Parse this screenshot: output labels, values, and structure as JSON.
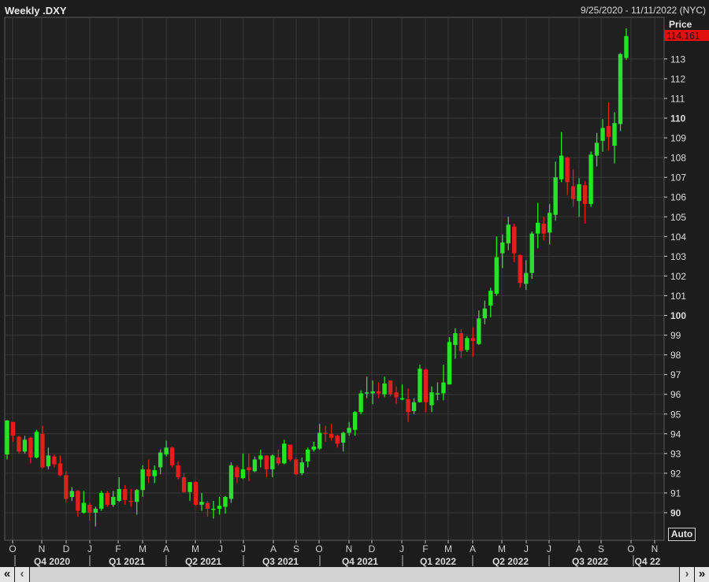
{
  "header": {
    "title": "Weekly .DXY",
    "range": "9/25/2020 - 11/11/2022 (NYC)"
  },
  "price_axis": {
    "label": "Price",
    "last_price": "114.161",
    "last_price_color": "#e01010",
    "auto_label": "Auto"
  },
  "scrollbar": {
    "first": "«",
    "prev": "‹",
    "next": "›",
    "last": "»"
  },
  "colors": {
    "up": "#24e524",
    "down": "#e0201c",
    "background": "#1c1c1c",
    "grid": "#383838"
  },
  "chart_data": {
    "type": "candlestick",
    "title": "Weekly .DXY",
    "period": "weekly",
    "ylabel": "Price",
    "ylim": [
      88.6,
      115
    ],
    "grid": true,
    "y_ticks": [
      90,
      91,
      92,
      93,
      94,
      95,
      96,
      97,
      98,
      99,
      100,
      101,
      102,
      103,
      104,
      105,
      106,
      107,
      108,
      109,
      110,
      111,
      112,
      113
    ],
    "bold_ticks": [
      90,
      100,
      110
    ],
    "month_labels": [
      "O",
      "N",
      "D",
      "J",
      "F",
      "M",
      "A",
      "M",
      "J",
      "J",
      "A",
      "S",
      "O",
      "N",
      "D",
      "J",
      "F",
      "M",
      "A",
      "M",
      "J",
      "J",
      "A",
      "S",
      "O",
      "N"
    ],
    "quarter_labels": [
      "Q4 2020",
      "Q1 2021",
      "Q2 2021",
      "Q3 2021",
      "Q4 2021",
      "Q1 2022",
      "Q2 2022",
      "Q3 2022",
      "Q4 22"
    ],
    "ohlc_fields": [
      "open",
      "high",
      "low",
      "close"
    ],
    "candles": [
      [
        92.95,
        94.7,
        92.7,
        94.67
      ],
      [
        94.6,
        94.6,
        93.6,
        93.9
      ],
      [
        93.85,
        93.9,
        93.0,
        93.1
      ],
      [
        93.1,
        93.9,
        93.0,
        93.7
      ],
      [
        93.8,
        93.85,
        92.5,
        92.8
      ],
      [
        92.8,
        94.2,
        92.75,
        94.1
      ],
      [
        94.0,
        94.4,
        92.25,
        92.3
      ],
      [
        92.35,
        93.3,
        92.2,
        92.9
      ],
      [
        92.85,
        92.95,
        92.3,
        92.45
      ],
      [
        92.5,
        92.9,
        91.85,
        91.9
      ],
      [
        91.9,
        92.1,
        90.5,
        90.7
      ],
      [
        90.8,
        91.3,
        90.6,
        91.1
      ],
      [
        91.1,
        91.15,
        89.8,
        90.1
      ],
      [
        90.0,
        91.1,
        89.95,
        90.5
      ],
      [
        90.4,
        90.5,
        89.6,
        90.0
      ],
      [
        90.0,
        90.3,
        89.3,
        90.2
      ],
      [
        90.2,
        91.1,
        90.1,
        91.0
      ],
      [
        91.0,
        91.1,
        90.3,
        90.4
      ],
      [
        90.4,
        91.1,
        90.3,
        90.8
      ],
      [
        90.6,
        91.8,
        90.55,
        91.2
      ],
      [
        91.2,
        91.4,
        90.4,
        90.65
      ],
      [
        90.6,
        91.2,
        90.3,
        90.55
      ],
      [
        90.55,
        91.2,
        89.9,
        91.15
      ],
      [
        91.15,
        92.4,
        90.8,
        92.2
      ],
      [
        92.2,
        92.7,
        91.5,
        91.85
      ],
      [
        91.85,
        92.4,
        91.5,
        92.15
      ],
      [
        92.3,
        93.2,
        91.95,
        93.05
      ],
      [
        92.95,
        93.65,
        92.85,
        93.3
      ],
      [
        93.3,
        93.35,
        92.3,
        92.4
      ],
      [
        92.4,
        92.6,
        91.7,
        91.8
      ],
      [
        91.8,
        92.0,
        91.0,
        91.05
      ],
      [
        91.05,
        91.55,
        90.6,
        91.55
      ],
      [
        91.55,
        91.6,
        90.35,
        90.4
      ],
      [
        90.4,
        91.0,
        90.1,
        90.55
      ],
      [
        90.5,
        90.6,
        89.8,
        90.2
      ],
      [
        90.15,
        90.6,
        89.7,
        90.2
      ],
      [
        90.2,
        90.8,
        89.9,
        90.35
      ],
      [
        90.3,
        90.85,
        89.95,
        90.8
      ],
      [
        90.7,
        92.55,
        90.5,
        92.4
      ],
      [
        92.3,
        92.4,
        91.5,
        91.8
      ],
      [
        91.75,
        93.0,
        91.7,
        92.2
      ],
      [
        92.3,
        93.0,
        91.6,
        92.15
      ],
      [
        92.1,
        92.85,
        92.05,
        92.7
      ],
      [
        92.7,
        93.2,
        92.3,
        92.9
      ],
      [
        92.9,
        92.9,
        91.8,
        92.2
      ],
      [
        92.2,
        92.95,
        91.8,
        92.9
      ],
      [
        92.8,
        93.2,
        92.4,
        92.5
      ],
      [
        92.5,
        93.7,
        92.45,
        93.5
      ],
      [
        93.45,
        93.45,
        92.6,
        92.7
      ],
      [
        92.7,
        92.8,
        91.9,
        91.95
      ],
      [
        92.0,
        92.8,
        91.9,
        92.55
      ],
      [
        92.6,
        93.3,
        92.3,
        93.2
      ],
      [
        93.2,
        93.6,
        93.1,
        93.35
      ],
      [
        93.25,
        94.5,
        93.2,
        94.05
      ],
      [
        94.05,
        94.4,
        93.6,
        94.0
      ],
      [
        94.0,
        94.5,
        93.65,
        93.8
      ],
      [
        93.9,
        93.95,
        93.3,
        93.5
      ],
      [
        93.55,
        94.1,
        93.1,
        94.05
      ],
      [
        94.05,
        94.6,
        93.9,
        94.3
      ],
      [
        94.2,
        95.15,
        93.9,
        95.1
      ],
      [
        95.1,
        96.2,
        95.0,
        96.05
      ],
      [
        96.05,
        96.9,
        95.8,
        96.1
      ],
      [
        96.05,
        96.7,
        95.5,
        96.15
      ],
      [
        96.15,
        96.6,
        95.8,
        96.05
      ],
      [
        96.0,
        96.9,
        95.85,
        96.55
      ],
      [
        96.7,
        96.7,
        95.9,
        96.0
      ],
      [
        96.1,
        96.4,
        95.5,
        95.85
      ],
      [
        95.75,
        96.5,
        95.7,
        95.8
      ],
      [
        95.75,
        96.3,
        94.6,
        95.1
      ],
      [
        95.15,
        95.8,
        95.0,
        95.6
      ],
      [
        95.6,
        97.5,
        95.6,
        97.3
      ],
      [
        97.25,
        97.3,
        95.1,
        95.6
      ],
      [
        95.45,
        96.4,
        95.1,
        96.1
      ],
      [
        96.0,
        96.6,
        95.7,
        96.05
      ],
      [
        96.05,
        97.5,
        95.7,
        96.6
      ],
      [
        96.5,
        98.9,
        96.5,
        98.65
      ],
      [
        98.5,
        99.35,
        97.8,
        99.1
      ],
      [
        99.1,
        99.3,
        97.85,
        98.2
      ],
      [
        98.25,
        98.95,
        98.15,
        98.85
      ],
      [
        98.85,
        99.4,
        97.9,
        98.7
      ],
      [
        98.55,
        100.25,
        98.5,
        99.85
      ],
      [
        99.85,
        100.75,
        99.55,
        100.35
      ],
      [
        100.5,
        101.4,
        99.9,
        101.25
      ],
      [
        101.1,
        104.0,
        101.0,
        102.95
      ],
      [
        103.15,
        104.1,
        102.4,
        103.7
      ],
      [
        103.65,
        105.0,
        103.3,
        104.6
      ],
      [
        104.5,
        104.65,
        102.7,
        103.15
      ],
      [
        103.05,
        103.1,
        101.4,
        101.65
      ],
      [
        101.6,
        102.8,
        101.3,
        102.15
      ],
      [
        102.15,
        104.25,
        101.85,
        104.15
      ],
      [
        104.15,
        105.7,
        103.4,
        104.7
      ],
      [
        104.65,
        105.0,
        103.8,
        104.15
      ],
      [
        104.2,
        105.65,
        103.6,
        105.2
      ],
      [
        105.1,
        107.8,
        104.8,
        107.0
      ],
      [
        106.9,
        109.3,
        106.75,
        108.1
      ],
      [
        108.0,
        108.05,
        106.1,
        106.75
      ],
      [
        106.55,
        107.4,
        105.5,
        105.9
      ],
      [
        105.8,
        106.95,
        105.0,
        106.65
      ],
      [
        106.6,
        106.8,
        104.65,
        105.65
      ],
      [
        105.65,
        108.3,
        105.5,
        108.15
      ],
      [
        108.1,
        109.25,
        107.55,
        108.75
      ],
      [
        108.85,
        109.95,
        108.3,
        109.5
      ],
      [
        109.6,
        110.8,
        108.35,
        109.05
      ],
      [
        108.6,
        110.3,
        107.7,
        109.75
      ],
      [
        109.7,
        113.3,
        109.35,
        113.25
      ],
      [
        113.05,
        114.55,
        112.95,
        114.161
      ]
    ]
  }
}
